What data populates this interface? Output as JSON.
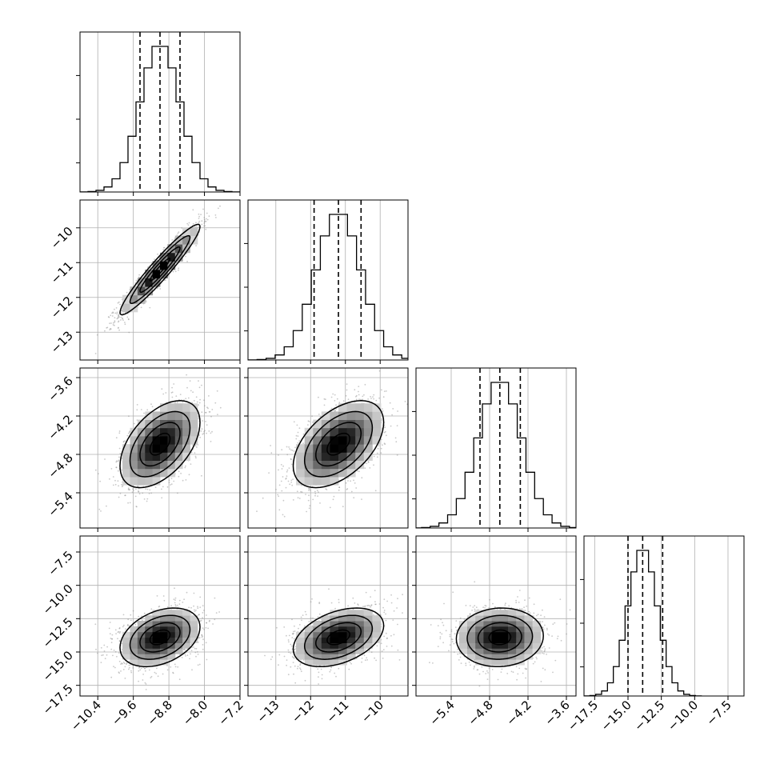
{
  "chart_data": {
    "type": "corner",
    "grid": true,
    "parameters": [
      {
        "range": [
          -10.8,
          -7.2
        ],
        "ticks": [
          -10.4,
          -9.6,
          -8.8,
          -8.0,
          -7.2
        ],
        "tick_labels": [
          "−10.4",
          "−9.6",
          "−8.8",
          "−8.0",
          "−7.2"
        ],
        "mean": -9.0,
        "sigma": 0.45,
        "quantiles": [
          -9.45,
          -9.0,
          -8.55
        ]
      },
      {
        "range": [
          -13.8,
          -9.2
        ],
        "ticks": [
          -13,
          -12,
          -11,
          -10
        ],
        "tick_labels": [
          "−13",
          "−12",
          "−11",
          "−10"
        ],
        "mean": -11.2,
        "sigma": 0.65,
        "quantiles": [
          -11.9,
          -11.2,
          -10.55
        ]
      },
      {
        "range": [
          -5.95,
          -3.45
        ],
        "ticks": [
          -5.4,
          -4.8,
          -4.2,
          -3.6
        ],
        "tick_labels": [
          "−5.4",
          "−4.8",
          "−4.2",
          "−3.6"
        ],
        "mean": -4.64,
        "sigma": 0.34,
        "quantiles": [
          -4.95,
          -4.64,
          -4.32
        ]
      },
      {
        "range": [
          -18.3,
          -6.3
        ],
        "ticks": [
          -17.5,
          -15.0,
          -12.5,
          -10.0,
          -7.5
        ],
        "tick_labels": [
          "−17.5",
          "−15.0",
          "−12.5",
          "−10.0",
          "−7.5"
        ],
        "mean": -13.9,
        "sigma": 1.1,
        "quantiles": [
          -15.0,
          -13.9,
          -12.4
        ]
      }
    ],
    "correlations": [
      [
        1,
        0.95,
        0.5,
        0.35
      ],
      [
        0.95,
        1,
        0.5,
        0.4
      ],
      [
        0.5,
        0.5,
        1,
        0.05
      ],
      [
        0.35,
        0.4,
        0.05,
        1
      ]
    ]
  }
}
